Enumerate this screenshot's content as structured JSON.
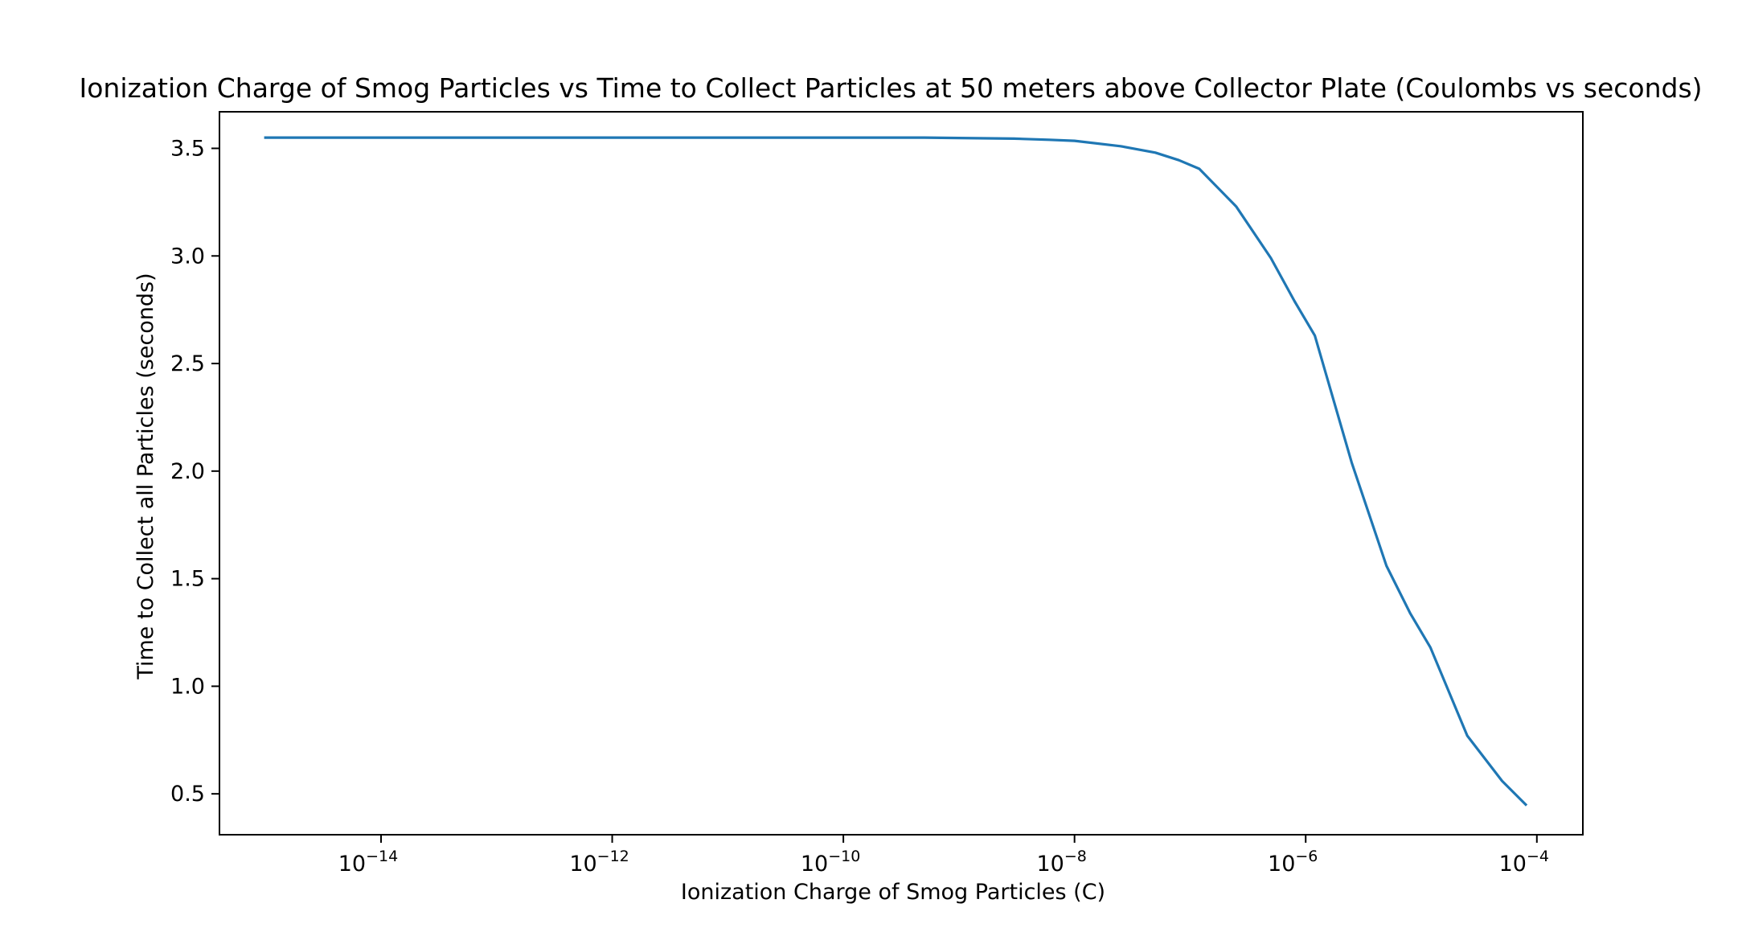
{
  "chart_data": {
    "type": "line",
    "title": "Ionization Charge of Smog Particles vs Time to Collect Particles at 50 meters above Collector Plate (Coulombs vs seconds)",
    "xlabel": "Ionization Charge of Smog Particles (C)",
    "ylabel": "Time to Collect all Particles (seconds)",
    "xscale": "log",
    "xlim": [
      4e-16,
      0.00025
    ],
    "ylim": [
      0.31,
      3.67
    ],
    "grid": false,
    "legend": "none",
    "line_color": "#1f77b4",
    "x_ticks": [
      {
        "base": "10",
        "exp": "−14",
        "value": 1e-14
      },
      {
        "base": "10",
        "exp": "−12",
        "value": 1e-12
      },
      {
        "base": "10",
        "exp": "−10",
        "value": 1e-10
      },
      {
        "base": "10",
        "exp": "−8",
        "value": 1e-08
      },
      {
        "base": "10",
        "exp": "−6",
        "value": 1e-06
      },
      {
        "base": "10",
        "exp": "−4",
        "value": 0.0001
      }
    ],
    "y_ticks": [
      {
        "label": "0.5",
        "value": 0.5
      },
      {
        "label": "1.0",
        "value": 1.0
      },
      {
        "label": "1.5",
        "value": 1.5
      },
      {
        "label": "2.0",
        "value": 2.0
      },
      {
        "label": "2.5",
        "value": 2.5
      },
      {
        "label": "3.0",
        "value": 3.0
      },
      {
        "label": "3.5",
        "value": 3.5
      }
    ],
    "series": [
      {
        "x": [
          1e-15,
          1e-13,
          1e-11,
          1e-10,
          5e-10,
          1e-09,
          3e-09,
          6e-09,
          1e-08,
          2.5e-08,
          5e-08,
          8e-08,
          1.2e-07,
          2.5e-07,
          5e-07,
          8e-07,
          1.2e-06,
          2.5e-06,
          5e-06,
          8e-06,
          1.2e-05,
          2.5e-05,
          5e-05,
          8e-05
        ],
        "y": [
          3.55,
          3.55,
          3.55,
          3.55,
          3.55,
          3.548,
          3.545,
          3.54,
          3.535,
          3.51,
          3.48,
          3.445,
          3.405,
          3.23,
          2.99,
          2.79,
          2.63,
          2.04,
          1.56,
          1.34,
          1.18,
          0.77,
          0.56,
          0.45
        ]
      }
    ]
  }
}
